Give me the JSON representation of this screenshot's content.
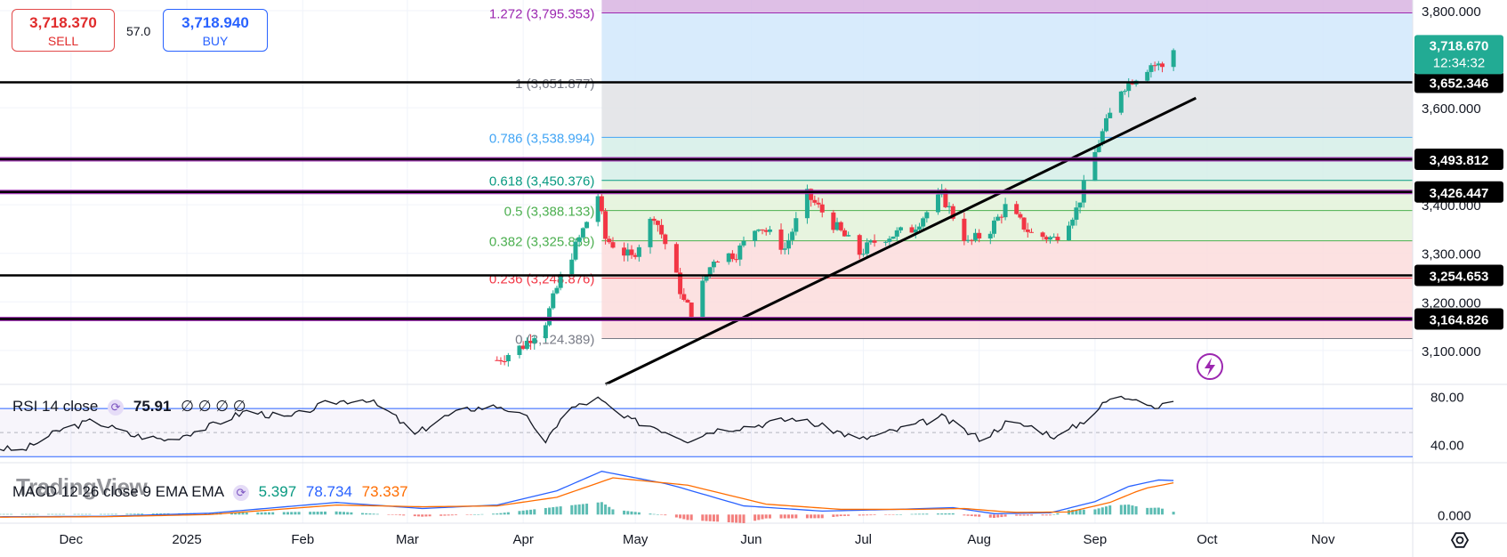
{
  "toolbar": {
    "sell_price": "3,718.370",
    "sell_label": "SELL",
    "spread": "57.0",
    "buy_price": "3,718.940",
    "buy_label": "BUY"
  },
  "watermark": "TradingView",
  "chart_data": [
    {
      "type": "candlestick",
      "title": "",
      "x_range": [
        "2024-11-12",
        "2025-11-25"
      ],
      "y_range": [
        3030,
        3822
      ],
      "price_scale_ticks": [
        3100,
        3200,
        3300,
        3400,
        3600,
        3800
      ],
      "price_scale_labels": [
        "3,100.000",
        "3,200.000",
        "3,300.000",
        "3,400.000",
        "3,600.000",
        "3,800.000"
      ],
      "time_labels": [
        {
          "date": "2024-12-01",
          "label": "Dec"
        },
        {
          "date": "2025-01-01",
          "label": "2025"
        },
        {
          "date": "2025-02-01",
          "label": "Feb"
        },
        {
          "date": "2025-03-01",
          "label": "Mar"
        },
        {
          "date": "2025-04-01",
          "label": "Apr"
        },
        {
          "date": "2025-05-01",
          "label": "May"
        },
        {
          "date": "2025-06-01",
          "label": "Jun"
        },
        {
          "date": "2025-07-01",
          "label": "Jul"
        },
        {
          "date": "2025-08-01",
          "label": "Aug"
        },
        {
          "date": "2025-09-01",
          "label": "Sep"
        },
        {
          "date": "2025-10-01",
          "label": "Oct"
        },
        {
          "date": "2025-11-01",
          "label": "Nov"
        }
      ],
      "last_price": {
        "value": 3718.67,
        "label": "3,718.670",
        "countdown": "12:34:32",
        "color": "#22ab94"
      },
      "colors": {
        "up": "#22ab94",
        "down": "#f23645"
      },
      "candles_anchor_path": [
        [
          "2025-03-25",
          3080
        ],
        [
          "2025-04-01",
          3110
        ],
        [
          "2025-04-07",
          3160
        ],
        [
          "2025-04-11",
          3250
        ],
        [
          "2025-04-16",
          3330
        ],
        [
          "2025-04-21",
          3420
        ],
        [
          "2025-04-23",
          3330
        ],
        [
          "2025-04-30",
          3290
        ],
        [
          "2025-05-06",
          3380
        ],
        [
          "2025-05-10",
          3300
        ],
        [
          "2025-05-14",
          3200
        ],
        [
          "2025-05-16",
          3180
        ],
        [
          "2025-05-22",
          3290
        ],
        [
          "2025-05-28",
          3300
        ],
        [
          "2025-06-03",
          3360
        ],
        [
          "2025-06-10",
          3310
        ],
        [
          "2025-06-16",
          3420
        ],
        [
          "2025-06-23",
          3360
        ],
        [
          "2025-06-30",
          3300
        ],
        [
          "2025-07-05",
          3330
        ],
        [
          "2025-07-14",
          3350
        ],
        [
          "2025-07-22",
          3420
        ],
        [
          "2025-07-29",
          3320
        ],
        [
          "2025-08-04",
          3350
        ],
        [
          "2025-08-08",
          3395
        ],
        [
          "2025-08-15",
          3340
        ],
        [
          "2025-08-21",
          3330
        ],
        [
          "2025-08-27",
          3390
        ],
        [
          "2025-09-02",
          3530
        ],
        [
          "2025-09-08",
          3640
        ],
        [
          "2025-09-16",
          3690
        ],
        [
          "2025-09-19",
          3685
        ],
        [
          "2025-09-22",
          3718.67
        ]
      ],
      "horizontal_lines": [
        {
          "value": 3652.346,
          "label": "3,652.346",
          "color": "#000000"
        },
        {
          "value": 3493.812,
          "label": "3,493.812",
          "color": "#000000",
          "band_color": "#9c27b0"
        },
        {
          "value": 3426.447,
          "label": "3,426.447",
          "color": "#000000",
          "band_color": "#9c27b0"
        },
        {
          "value": 3254.653,
          "label": "3,254.653",
          "color": "#000000"
        },
        {
          "value": 3164.826,
          "label": "3,164.826",
          "color": "#000000",
          "band_color": "#9c27b0"
        }
      ],
      "fibonacci": {
        "start_date": "2025-04-22",
        "levels": [
          {
            "ratio": "1.272",
            "value": 3795.353,
            "label": "1.272 (3,795.353)",
            "color": "#9c27b0",
            "fill": "#d8b4e2"
          },
          {
            "ratio": "1",
            "value": 3651.877,
            "label": "1 (3,651.877)",
            "color": "#787b86",
            "fill": "#d1e7fb"
          },
          {
            "ratio": "0.786",
            "value": 3538.994,
            "label": "0.786 (3,538.994)",
            "color": "#42a5f5",
            "fill": "#e1e2e5"
          },
          {
            "ratio": "0.618",
            "value": 3450.376,
            "label": "0.618 (3,450.376)",
            "color": "#089981",
            "fill": "#d5eee8"
          },
          {
            "ratio": "0.5",
            "value": 3388.133,
            "label": "0.5 (3,388.133)",
            "color": "#4caf50",
            "fill": "#e3f2d9"
          },
          {
            "ratio": "0.382",
            "value": 3325.889,
            "label": "0.382 (3,325.889)",
            "color": "#4caf50",
            "fill": "#e3f2d9"
          },
          {
            "ratio": "0.236",
            "value": 3248.876,
            "label": "0.236 (3,248.876)",
            "color": "#f23645",
            "fill": "#fbdcdc"
          },
          {
            "ratio": "0",
            "value": 3124.389,
            "label": "0 (3,124.389)",
            "color": "#787b86",
            "fill": "#fbdcdc"
          }
        ]
      },
      "trendline": {
        "from": [
          "2025-04-23",
          3030
        ],
        "to": [
          "2025-09-28",
          3620
        ],
        "color": "#000000"
      }
    },
    {
      "type": "line",
      "name": "RSI 14 close",
      "value_label": "75.91",
      "placeholders": [
        "∅",
        "∅",
        "∅",
        "∅"
      ],
      "y_range": [
        25,
        90
      ],
      "ticks": [
        {
          "value": 80,
          "label": "80.00"
        },
        {
          "value": 40,
          "label": "40.00"
        }
      ],
      "bands": [
        70,
        50,
        30
      ],
      "color": "#131722",
      "anchor_path": [
        [
          "2024-11-12",
          37
        ],
        [
          "2024-11-18",
          35
        ],
        [
          "2024-11-28",
          52
        ],
        [
          "2024-12-07",
          60
        ],
        [
          "2024-12-17",
          48
        ],
        [
          "2024-12-27",
          44
        ],
        [
          "2025-01-07",
          55
        ],
        [
          "2025-01-17",
          68
        ],
        [
          "2025-01-28",
          62
        ],
        [
          "2025-02-08",
          75
        ],
        [
          "2025-02-18",
          78
        ],
        [
          "2025-02-25",
          65
        ],
        [
          "2025-03-03",
          48
        ],
        [
          "2025-03-10",
          62
        ],
        [
          "2025-03-18",
          70
        ],
        [
          "2025-03-26",
          72
        ],
        [
          "2025-04-03",
          60
        ],
        [
          "2025-04-07",
          40
        ],
        [
          "2025-04-12",
          68
        ],
        [
          "2025-04-21",
          78
        ],
        [
          "2025-04-28",
          62
        ],
        [
          "2025-05-06",
          55
        ],
        [
          "2025-05-15",
          44
        ],
        [
          "2025-05-22",
          52
        ],
        [
          "2025-06-02",
          56
        ],
        [
          "2025-06-13",
          62
        ],
        [
          "2025-06-25",
          50
        ],
        [
          "2025-06-30",
          44
        ],
        [
          "2025-07-10",
          52
        ],
        [
          "2025-07-22",
          63
        ],
        [
          "2025-07-29",
          50
        ],
        [
          "2025-08-02",
          44
        ],
        [
          "2025-08-08",
          58
        ],
        [
          "2025-08-15",
          55
        ],
        [
          "2025-08-22",
          46
        ],
        [
          "2025-08-29",
          60
        ],
        [
          "2025-09-05",
          78
        ],
        [
          "2025-09-12",
          80
        ],
        [
          "2025-09-18",
          70
        ],
        [
          "2025-09-22",
          75.91
        ]
      ]
    },
    {
      "type": "bar+line",
      "name": "MACD 12 26 close 9 EMA EMA",
      "values_label": [
        "5.397",
        "78.734",
        "73.337"
      ],
      "value_colors": [
        "#089981",
        "#2962ff",
        "#ff6d00"
      ],
      "y_range": [
        -20,
        120
      ],
      "ticks": [
        {
          "value": 0,
          "label": "0.000"
        }
      ],
      "macd_color": "#2962ff",
      "signal_color": "#ff6d00",
      "macd_anchor_path": [
        [
          "2024-11-12",
          -5
        ],
        [
          "2024-12-10",
          -4
        ],
        [
          "2025-01-07",
          3
        ],
        [
          "2025-02-10",
          28
        ],
        [
          "2025-03-05",
          14
        ],
        [
          "2025-03-25",
          22
        ],
        [
          "2025-04-10",
          55
        ],
        [
          "2025-04-22",
          100
        ],
        [
          "2025-05-10",
          70
        ],
        [
          "2025-05-30",
          20
        ],
        [
          "2025-06-20",
          8
        ],
        [
          "2025-07-10",
          12
        ],
        [
          "2025-07-25",
          16
        ],
        [
          "2025-08-05",
          2
        ],
        [
          "2025-08-20",
          4
        ],
        [
          "2025-09-01",
          30
        ],
        [
          "2025-09-10",
          65
        ],
        [
          "2025-09-18",
          80
        ],
        [
          "2025-09-22",
          78.734
        ]
      ],
      "signal_anchor_path": [
        [
          "2024-11-12",
          -6
        ],
        [
          "2024-12-10",
          -5
        ],
        [
          "2025-01-07",
          0
        ],
        [
          "2025-02-10",
          22
        ],
        [
          "2025-03-05",
          18
        ],
        [
          "2025-03-25",
          20
        ],
        [
          "2025-04-10",
          40
        ],
        [
          "2025-04-25",
          85
        ],
        [
          "2025-05-15",
          68
        ],
        [
          "2025-06-05",
          24
        ],
        [
          "2025-06-25",
          12
        ],
        [
          "2025-07-15",
          12
        ],
        [
          "2025-07-28",
          14
        ],
        [
          "2025-08-10",
          5
        ],
        [
          "2025-08-25",
          6
        ],
        [
          "2025-09-05",
          28
        ],
        [
          "2025-09-14",
          60
        ],
        [
          "2025-09-22",
          73.337
        ]
      ]
    }
  ]
}
